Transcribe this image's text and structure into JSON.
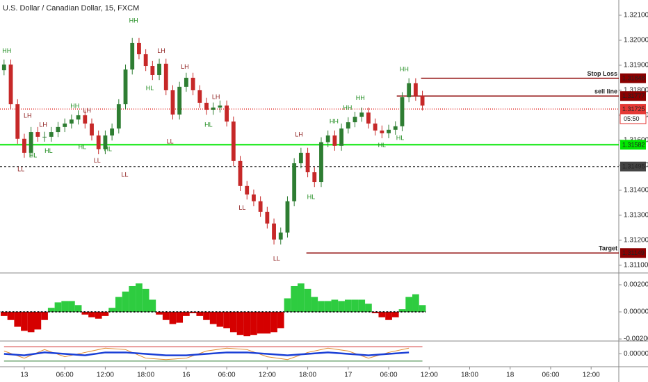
{
  "chart_data": [
    {
      "type": "candlestick",
      "title": "U.S. Dollar / Canadian Dollar, 15, FXCM",
      "x": [
        -3,
        -2,
        -1,
        0,
        1,
        2,
        3,
        4,
        5,
        6,
        7,
        8,
        9,
        10,
        11,
        12,
        13,
        14,
        15,
        16,
        17,
        18,
        19,
        20,
        21,
        22,
        23,
        24,
        25,
        26,
        27,
        28,
        29,
        30,
        31,
        32,
        33,
        34,
        35,
        36,
        37,
        38,
        39,
        40,
        41,
        42,
        43,
        44,
        45,
        46,
        47,
        48,
        49,
        50,
        51,
        52,
        53,
        54,
        55,
        56,
        57,
        58,
        59
      ],
      "open": [
        1.3188,
        1.31903,
        1.31744,
        1.31606,
        1.3155,
        1.31633,
        1.31614,
        1.31614,
        1.31633,
        1.31653,
        1.31667,
        1.31683,
        1.317,
        1.31667,
        1.31619,
        1.31564,
        1.31619,
        1.31647,
        1.31744,
        1.31883,
        1.31989,
        1.31944,
        1.31897,
        1.31861,
        1.31906,
        1.318,
        1.31703,
        1.31814,
        1.3185,
        1.318,
        1.3175,
        1.31722,
        1.31731,
        1.31739,
        1.31675,
        1.31517,
        1.31417,
        1.31383,
        1.31356,
        1.31314,
        1.31267,
        1.31203,
        1.31231,
        1.31356,
        1.31508,
        1.3155,
        1.31472,
        1.31433,
        1.31592,
        1.31619,
        1.31578,
        1.31647,
        1.31672,
        1.31694,
        1.31711,
        1.31667,
        1.31639,
        1.31628,
        1.31642,
        1.31656,
        1.31772,
        1.31828,
        1.31778
      ],
      "high": [
        1.31923,
        1.31923,
        1.31764,
        1.31626,
        1.31653,
        1.31653,
        1.31634,
        1.31653,
        1.31673,
        1.31687,
        1.31703,
        1.3172,
        1.3172,
        1.31687,
        1.31639,
        1.31639,
        1.31667,
        1.31764,
        1.31903,
        1.32009,
        1.32009,
        1.31964,
        1.31917,
        1.31926,
        1.31926,
        1.3182,
        1.31834,
        1.3187,
        1.3187,
        1.3182,
        1.3177,
        1.31751,
        1.31759,
        1.31759,
        1.31695,
        1.31537,
        1.31437,
        1.31403,
        1.31376,
        1.31334,
        1.31287,
        1.31251,
        1.31376,
        1.31528,
        1.3157,
        1.3157,
        1.31492,
        1.31612,
        1.31639,
        1.31639,
        1.31667,
        1.31692,
        1.31714,
        1.31731,
        1.31731,
        1.31687,
        1.31659,
        1.31662,
        1.31676,
        1.31792,
        1.31848,
        1.31848,
        1.31798
      ],
      "low": [
        1.3186,
        1.31724,
        1.31586,
        1.3153,
        1.3153,
        1.31594,
        1.31594,
        1.31594,
        1.31613,
        1.31633,
        1.31647,
        1.31663,
        1.31647,
        1.31599,
        1.31544,
        1.31544,
        1.31599,
        1.31627,
        1.31724,
        1.31863,
        1.31924,
        1.31877,
        1.31841,
        1.31841,
        1.3178,
        1.31683,
        1.31683,
        1.31794,
        1.3178,
        1.3173,
        1.31702,
        1.31702,
        1.31711,
        1.31655,
        1.31497,
        1.31397,
        1.31363,
        1.31336,
        1.31294,
        1.31247,
        1.31183,
        1.31183,
        1.31211,
        1.31336,
        1.31488,
        1.31452,
        1.31413,
        1.31413,
        1.31572,
        1.31558,
        1.31558,
        1.31627,
        1.31652,
        1.31674,
        1.31647,
        1.31619,
        1.31608,
        1.31608,
        1.31622,
        1.31636,
        1.31752,
        1.31758,
        1.31719
      ],
      "close": [
        1.31903,
        1.31744,
        1.31606,
        1.3155,
        1.31633,
        1.31614,
        1.31614,
        1.31633,
        1.31653,
        1.31667,
        1.31683,
        1.317,
        1.31667,
        1.31619,
        1.31564,
        1.31619,
        1.31647,
        1.31744,
        1.31883,
        1.31989,
        1.31944,
        1.31897,
        1.31861,
        1.31906,
        1.318,
        1.31703,
        1.31814,
        1.3185,
        1.318,
        1.3175,
        1.31722,
        1.31731,
        1.31739,
        1.31675,
        1.31517,
        1.31417,
        1.31383,
        1.31356,
        1.31314,
        1.31267,
        1.31203,
        1.31231,
        1.31356,
        1.31508,
        1.3155,
        1.31472,
        1.31433,
        1.31592,
        1.31619,
        1.31578,
        1.31647,
        1.31672,
        1.31694,
        1.31711,
        1.31667,
        1.31639,
        1.31628,
        1.31642,
        1.31656,
        1.31772,
        1.31828,
        1.31778,
        1.31739
      ],
      "up_color": "#2e7d32",
      "down_color": "#c62828",
      "xlim": [
        -3.6,
        88.1
      ],
      "xticks": [
        {
          "value": 0,
          "label": "13"
        },
        {
          "value": 6,
          "label": "06:00"
        },
        {
          "value": 12,
          "label": "12:00"
        },
        {
          "value": 18,
          "label": "18:00"
        },
        {
          "value": 24,
          "label": "16"
        },
        {
          "value": 30,
          "label": "06:00"
        },
        {
          "value": 36,
          "label": "12:00"
        },
        {
          "value": 42,
          "label": "18:00"
        },
        {
          "value": 48,
          "label": "17"
        },
        {
          "value": 54,
          "label": "06:00"
        },
        {
          "value": 60,
          "label": "12:00"
        },
        {
          "value": 66,
          "label": "18:00"
        },
        {
          "value": 72,
          "label": "18"
        },
        {
          "value": 78,
          "label": "06:00"
        },
        {
          "value": 84,
          "label": "12:00"
        }
      ],
      "ylim": [
        1.31072,
        1.32161
      ],
      "yticks": [
        {
          "value": 1.321,
          "label": "1.32100"
        },
        {
          "value": 1.32,
          "label": "1.32000"
        },
        {
          "value": 1.319,
          "label": "1.31900"
        },
        {
          "value": 1.318,
          "label": "1.31800"
        },
        {
          "value": 1.317,
          "label": "1.31700"
        },
        {
          "value": 1.316,
          "label": "1.31600"
        },
        {
          "value": 1.315,
          "label": "1.31500"
        },
        {
          "value": 1.314,
          "label": "1.31400"
        },
        {
          "value": 1.313,
          "label": "1.31300"
        },
        {
          "value": 1.312,
          "label": "1.31200"
        },
        {
          "value": 1.311,
          "label": "1.31100"
        }
      ],
      "levels": [
        {
          "label": "Stop Loss",
          "value": 1.31848,
          "from": 58.8,
          "color": "#8b0000",
          "line_style": "solid",
          "tag_text_color": "#ffffff"
        },
        {
          "label": "sell line",
          "value": 1.31777,
          "from": 55.2,
          "color": "#8b0000",
          "line_style": "solid",
          "tag_text_color": "#ffffff"
        },
        {
          "value": 1.31725,
          "color": "#e53935",
          "line_style": "dotted",
          "tag_text_color": "#ffffff",
          "countdown": "05:50"
        },
        {
          "value": 1.31582,
          "color": "#00e600",
          "line_style": "solid",
          "tag_text_color": "#000000"
        },
        {
          "value": 1.31495,
          "color": "#444444",
          "line_style": "dashed",
          "tag_text_color": "#ffffff"
        },
        {
          "label": "Target",
          "value": 1.31149,
          "from": 41.8,
          "color": "#8b0000",
          "line_style": "solid",
          "tag_text_color": "#ffffff"
        }
      ],
      "annotations": [
        {
          "text": "HH",
          "x": -2.6,
          "price": 1.31956,
          "color": "#1b8a1b"
        },
        {
          "text": "LH",
          "x": 0.5,
          "price": 1.31697,
          "color": "#8b1a1a"
        },
        {
          "text": "HL",
          "x": 1.3,
          "price": 1.31539,
          "color": "#1b8a1b"
        },
        {
          "text": "LL",
          "x": -0.5,
          "price": 1.31483,
          "color": "#8b1a1a"
        },
        {
          "text": "LH",
          "x": 2.8,
          "price": 1.31661,
          "color": "#8b1a1a"
        },
        {
          "text": "HL",
          "x": 3.6,
          "price": 1.31556,
          "color": "#1b8a1b"
        },
        {
          "text": "HH",
          "x": 7.5,
          "price": 1.31736,
          "color": "#1b8a1b"
        },
        {
          "text": "LH",
          "x": 9.3,
          "price": 1.31717,
          "color": "#8b1a1a"
        },
        {
          "text": "HL",
          "x": 8.6,
          "price": 1.31572,
          "color": "#1b8a1b"
        },
        {
          "text": "HL",
          "x": 12.4,
          "price": 1.31564,
          "color": "#1b8a1b"
        },
        {
          "text": "LL",
          "x": 10.8,
          "price": 1.31517,
          "color": "#8b1a1a"
        },
        {
          "text": "LL",
          "x": 14.9,
          "price": 1.31461,
          "color": "#8b1a1a"
        },
        {
          "text": "HH",
          "x": 16.2,
          "price": 1.32078,
          "color": "#1b8a1b"
        },
        {
          "text": "LH",
          "x": 20.3,
          "price": 1.31956,
          "color": "#8b1a1a"
        },
        {
          "text": "HL",
          "x": 18.6,
          "price": 1.31806,
          "color": "#1b8a1b"
        },
        {
          "text": "LH",
          "x": 23.8,
          "price": 1.31892,
          "color": "#8b1a1a"
        },
        {
          "text": "LL",
          "x": 21.6,
          "price": 1.31594,
          "color": "#8b1a1a"
        },
        {
          "text": "LH",
          "x": 28.4,
          "price": 1.31772,
          "color": "#8b1a1a"
        },
        {
          "text": "HL",
          "x": 27.3,
          "price": 1.31661,
          "color": "#1b8a1b"
        },
        {
          "text": "LL",
          "x": 32.3,
          "price": 1.31328,
          "color": "#8b1a1a"
        },
        {
          "text": "LL",
          "x": 37.4,
          "price": 1.31125,
          "color": "#8b1a1a"
        },
        {
          "text": "LH",
          "x": 40.7,
          "price": 1.31622,
          "color": "#8b1a1a"
        },
        {
          "text": "HL",
          "x": 42.5,
          "price": 1.31372,
          "color": "#1b8a1b"
        },
        {
          "text": "HH",
          "x": 45.9,
          "price": 1.31675,
          "color": "#1b8a1b"
        },
        {
          "text": "HH",
          "x": 47.9,
          "price": 1.31728,
          "color": "#1b8a1b"
        },
        {
          "text": "HH",
          "x": 49.8,
          "price": 1.31767,
          "color": "#1b8a1b"
        },
        {
          "text": "HL",
          "x": 53.0,
          "price": 1.31578,
          "color": "#1b8a1b"
        },
        {
          "text": "HL",
          "x": 55.7,
          "price": 1.31608,
          "color": "#1b8a1b"
        },
        {
          "text": "HH",
          "x": 56.3,
          "price": 1.31883,
          "color": "#1b8a1b"
        }
      ]
    },
    {
      "type": "bar",
      "x": [
        -3,
        -2,
        -1,
        0,
        1,
        2,
        3,
        4,
        5,
        6,
        7,
        8,
        9,
        10,
        11,
        12,
        13,
        14,
        15,
        16,
        17,
        18,
        19,
        20,
        21,
        22,
        23,
        24,
        25,
        26,
        27,
        28,
        29,
        30,
        31,
        32,
        33,
        34,
        35,
        36,
        37,
        38,
        39,
        40,
        41,
        42,
        43,
        44,
        45,
        46,
        47,
        48,
        49,
        50,
        51,
        52,
        53,
        54,
        55,
        56,
        57,
        58,
        59
      ],
      "values": [
        -0.0003,
        -0.0006,
        -0.0011,
        -0.0014,
        -0.0015,
        -0.0013,
        -0.0006,
        0.0003,
        0.0007,
        0.0008,
        0.0008,
        0.0005,
        -0.0002,
        -0.0004,
        -0.0005,
        -0.0003,
        0.0003,
        0.0011,
        0.0015,
        0.0019,
        0.0021,
        0.0017,
        0.0009,
        -0.0002,
        -0.0006,
        -0.0009,
        -0.0008,
        -0.0003,
        -0.0001,
        -0.0003,
        -0.0006,
        -0.0009,
        -0.0011,
        -0.0012,
        -0.0015,
        -0.0017,
        -0.0018,
        -0.0017,
        -0.0016,
        -0.0016,
        -0.0015,
        -0.0012,
        0.001,
        0.0019,
        0.0021,
        0.0017,
        0.0011,
        0.0008,
        0.0008,
        0.0009,
        0.0008,
        0.0009,
        0.0009,
        0.0009,
        0.0006,
        -0.0001,
        -0.0004,
        -0.0006,
        -0.0004,
        0.0002,
        0.0011,
        0.0013,
        0.0005
      ],
      "positive_color": "#2ecc40",
      "negative_color": "#d50000",
      "ylim": [
        -0.0021,
        0.00277
      ],
      "yticks": [
        {
          "value": 0.002,
          "label": "0.00200"
        },
        {
          "value": 0,
          "label": "0.00000"
        },
        {
          "value": -0.002,
          "label": "-0.00200"
        }
      ]
    },
    {
      "type": "line",
      "x": [
        -3,
        0,
        3,
        6,
        9,
        12,
        15,
        18,
        21,
        24,
        27,
        30,
        33,
        36,
        39,
        42,
        45,
        48,
        51,
        54,
        57
      ],
      "series": [
        {
          "color": "#e08a2c",
          "values": [
            0.0002,
            -0.0003,
            0.0003,
            -0.0002,
            0.0001,
            0.0004,
            0.0003,
            -0.0003,
            -0.0004,
            -0.0003,
            0.0002,
            0.0004,
            0.0003,
            -0.0002,
            -0.0004,
            0.0001,
            0.0004,
            0.0002,
            -0.0003,
            0.0001,
            0.0004
          ]
        },
        {
          "color": "#1a3fd6",
          "values": [
            0,
            -0.0001,
            0.0001,
            0,
            -0.0001,
            0.0001,
            0.0001,
            0,
            -0.0001,
            -0.0001,
            0,
            0.0001,
            0.0001,
            0,
            -0.0001,
            0,
            0.0001,
            0,
            -0.0001,
            0,
            0.0001
          ]
        }
      ],
      "levels": [
        {
          "value": 0.0005,
          "color": "#d32f2f"
        },
        {
          "value": -0.0005,
          "color": "#2e7d32"
        }
      ],
      "ylim": [
        -0.0008,
        0.0008
      ],
      "yticks": [
        {
          "value": 0,
          "label": "0.00000"
        }
      ]
    }
  ]
}
